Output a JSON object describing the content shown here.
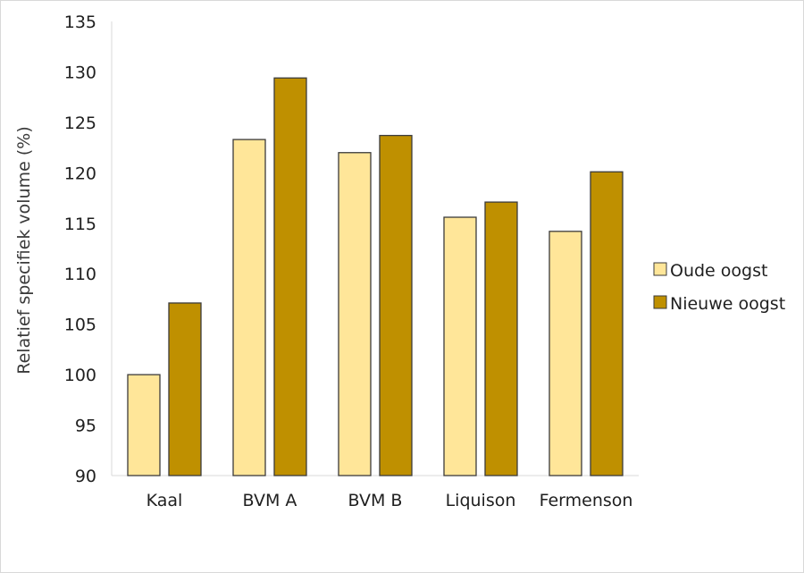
{
  "chart_data": {
    "type": "bar",
    "title": "",
    "xlabel": "",
    "ylabel": "Relatief specifiek volume (%)",
    "ylim": [
      90,
      135
    ],
    "yticks": [
      90,
      95,
      100,
      105,
      110,
      115,
      120,
      125,
      130,
      135
    ],
    "grid": false,
    "legend_position": "right",
    "categories": [
      "Kaal",
      "BVM A",
      "BVM B",
      "Liquison",
      "Fermenson"
    ],
    "series": [
      {
        "name": "Oude oogst",
        "color": "#ffe699",
        "values": [
          100.0,
          123.3,
          122.0,
          115.6,
          114.2
        ]
      },
      {
        "name": "Nieuwe oogst",
        "color": "#bf9000",
        "values": [
          107.1,
          129.4,
          123.7,
          117.1,
          120.1
        ]
      }
    ]
  }
}
